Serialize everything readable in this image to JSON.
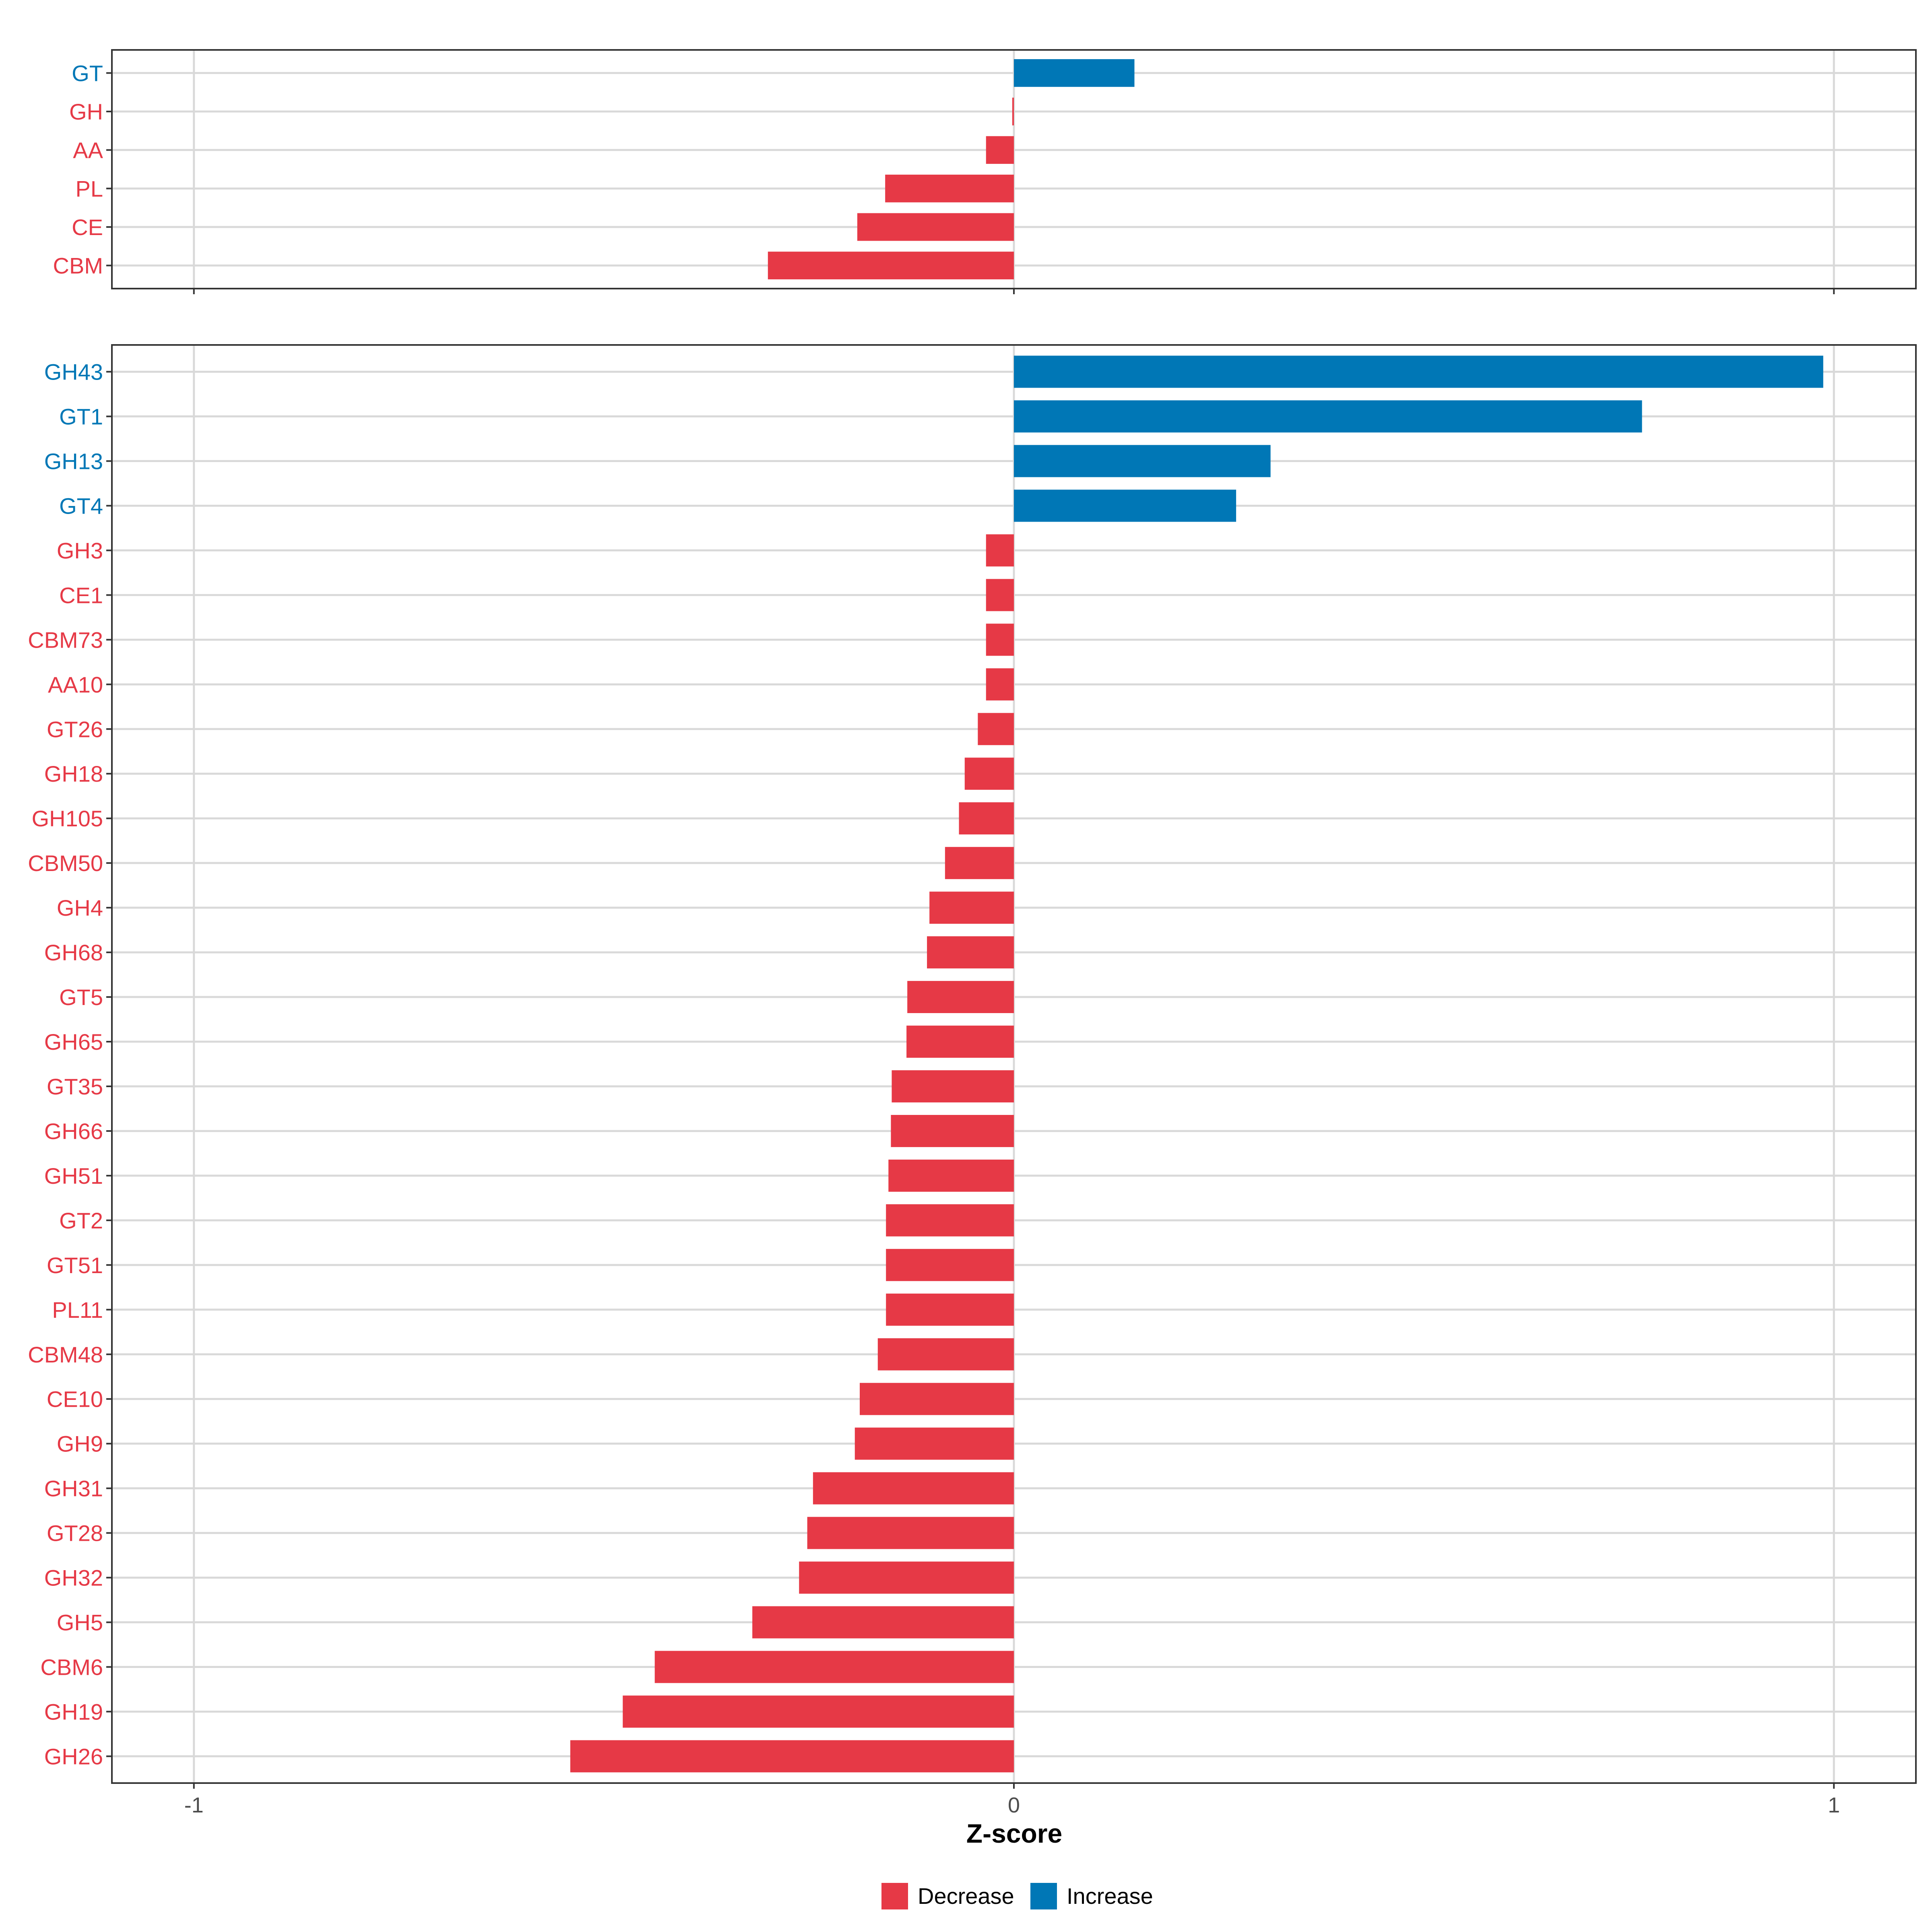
{
  "chart_data": {
    "type": "bar",
    "orientation": "horizontal",
    "xlabel": "Z-score",
    "xlim": [
      -1.1,
      1.1
    ],
    "xticks": [
      -1,
      0,
      1
    ],
    "xtick_labels": [
      "-1",
      "0",
      "1"
    ],
    "grid": true,
    "legend": {
      "position": "bottom",
      "entries": [
        {
          "label": "Decrease",
          "color": "#E63946"
        },
        {
          "label": "Increase",
          "color": "#0077B6"
        }
      ]
    },
    "colors": {
      "Increase": "#0077B6",
      "Decrease": "#E63946",
      "grid": "#d9d9d9",
      "axis": "#333333"
    },
    "panels": [
      {
        "name": "family-classes",
        "categories": [
          "GT",
          "GH",
          "AA",
          "PL",
          "CE",
          "CBM"
        ],
        "values": [
          0.147,
          -0.002,
          -0.034,
          -0.157,
          -0.191,
          -0.3
        ],
        "groups": [
          "Increase",
          "Decrease",
          "Decrease",
          "Decrease",
          "Decrease",
          "Decrease"
        ]
      },
      {
        "name": "families",
        "categories": [
          "GH43",
          "GT1",
          "GH13",
          "GT4",
          "GH3",
          "CE1",
          "CBM73",
          "AA10",
          "GT26",
          "GH18",
          "GH105",
          "CBM50",
          "GH4",
          "GH68",
          "GT5",
          "GH65",
          "GT35",
          "GH66",
          "GH51",
          "GT2",
          "GT51",
          "PL11",
          "CBM48",
          "CE10",
          "GH9",
          "GH31",
          "GT28",
          "GH32",
          "GH5",
          "CBM6",
          "GH19",
          "GH26"
        ],
        "values": [
          0.987,
          0.766,
          0.313,
          0.271,
          -0.034,
          -0.034,
          -0.034,
          -0.034,
          -0.044,
          -0.06,
          -0.067,
          -0.084,
          -0.103,
          -0.106,
          -0.13,
          -0.131,
          -0.149,
          -0.15,
          -0.153,
          -0.156,
          -0.156,
          -0.156,
          -0.166,
          -0.188,
          -0.194,
          -0.245,
          -0.252,
          -0.262,
          -0.319,
          -0.438,
          -0.477,
          -0.541
        ],
        "groups": [
          "Increase",
          "Increase",
          "Increase",
          "Increase",
          "Decrease",
          "Decrease",
          "Decrease",
          "Decrease",
          "Decrease",
          "Decrease",
          "Decrease",
          "Decrease",
          "Decrease",
          "Decrease",
          "Decrease",
          "Decrease",
          "Decrease",
          "Decrease",
          "Decrease",
          "Decrease",
          "Decrease",
          "Decrease",
          "Decrease",
          "Decrease",
          "Decrease",
          "Decrease",
          "Decrease",
          "Decrease",
          "Decrease",
          "Decrease",
          "Decrease",
          "Decrease"
        ]
      }
    ]
  }
}
